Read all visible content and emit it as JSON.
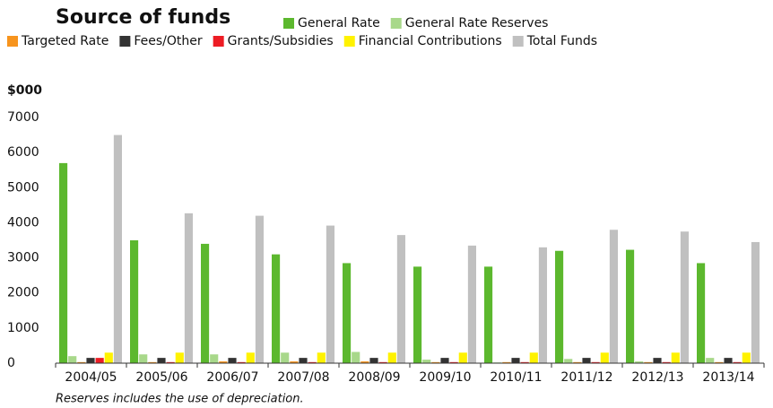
{
  "chart_data": {
    "type": "bar",
    "title": "Source of funds",
    "y_axis_label": "$000",
    "footnote": "Reserves includes the use of depreciation.",
    "categories": [
      "2004/05",
      "2005/06",
      "2006/07",
      "2007/08",
      "2008/09",
      "2009/10",
      "2010/11",
      "2011/12",
      "2012/13",
      "2013/14"
    ],
    "series": [
      {
        "name": "General Rate",
        "color": "#5cb82e",
        "values": [
          5700,
          3500,
          3400,
          3100,
          2850,
          2750,
          2750,
          3200,
          3230,
          2850
        ]
      },
      {
        "name": "General Rate Reserves",
        "color": "#a8d88a",
        "values": [
          200,
          250,
          250,
          300,
          320,
          100,
          20,
          120,
          50,
          150
        ]
      },
      {
        "name": "Targeted Rate",
        "color": "#f7941d",
        "values": [
          30,
          30,
          50,
          50,
          50,
          30,
          30,
          30,
          30,
          30
        ]
      },
      {
        "name": "Fees/Other",
        "color": "#333333",
        "values": [
          150,
          150,
          150,
          150,
          150,
          150,
          150,
          150,
          150,
          150
        ]
      },
      {
        "name": "Grants/Subsidies",
        "color": "#ed1c24",
        "values": [
          150,
          30,
          30,
          30,
          30,
          30,
          30,
          30,
          30,
          30
        ]
      },
      {
        "name": "Financial Contributions",
        "color": "#fff200",
        "values": [
          300,
          300,
          300,
          300,
          300,
          300,
          300,
          300,
          300,
          300
        ]
      },
      {
        "name": "Total Funds",
        "color": "#c0c0c0",
        "values": [
          6500,
          4270,
          4200,
          3920,
          3650,
          3350,
          3300,
          3800,
          3750,
          3450
        ]
      }
    ],
    "ylim": [
      0,
      7000
    ],
    "yticks": [
      0,
      1000,
      2000,
      3000,
      4000,
      5000,
      6000,
      7000
    ],
    "grid": false
  }
}
